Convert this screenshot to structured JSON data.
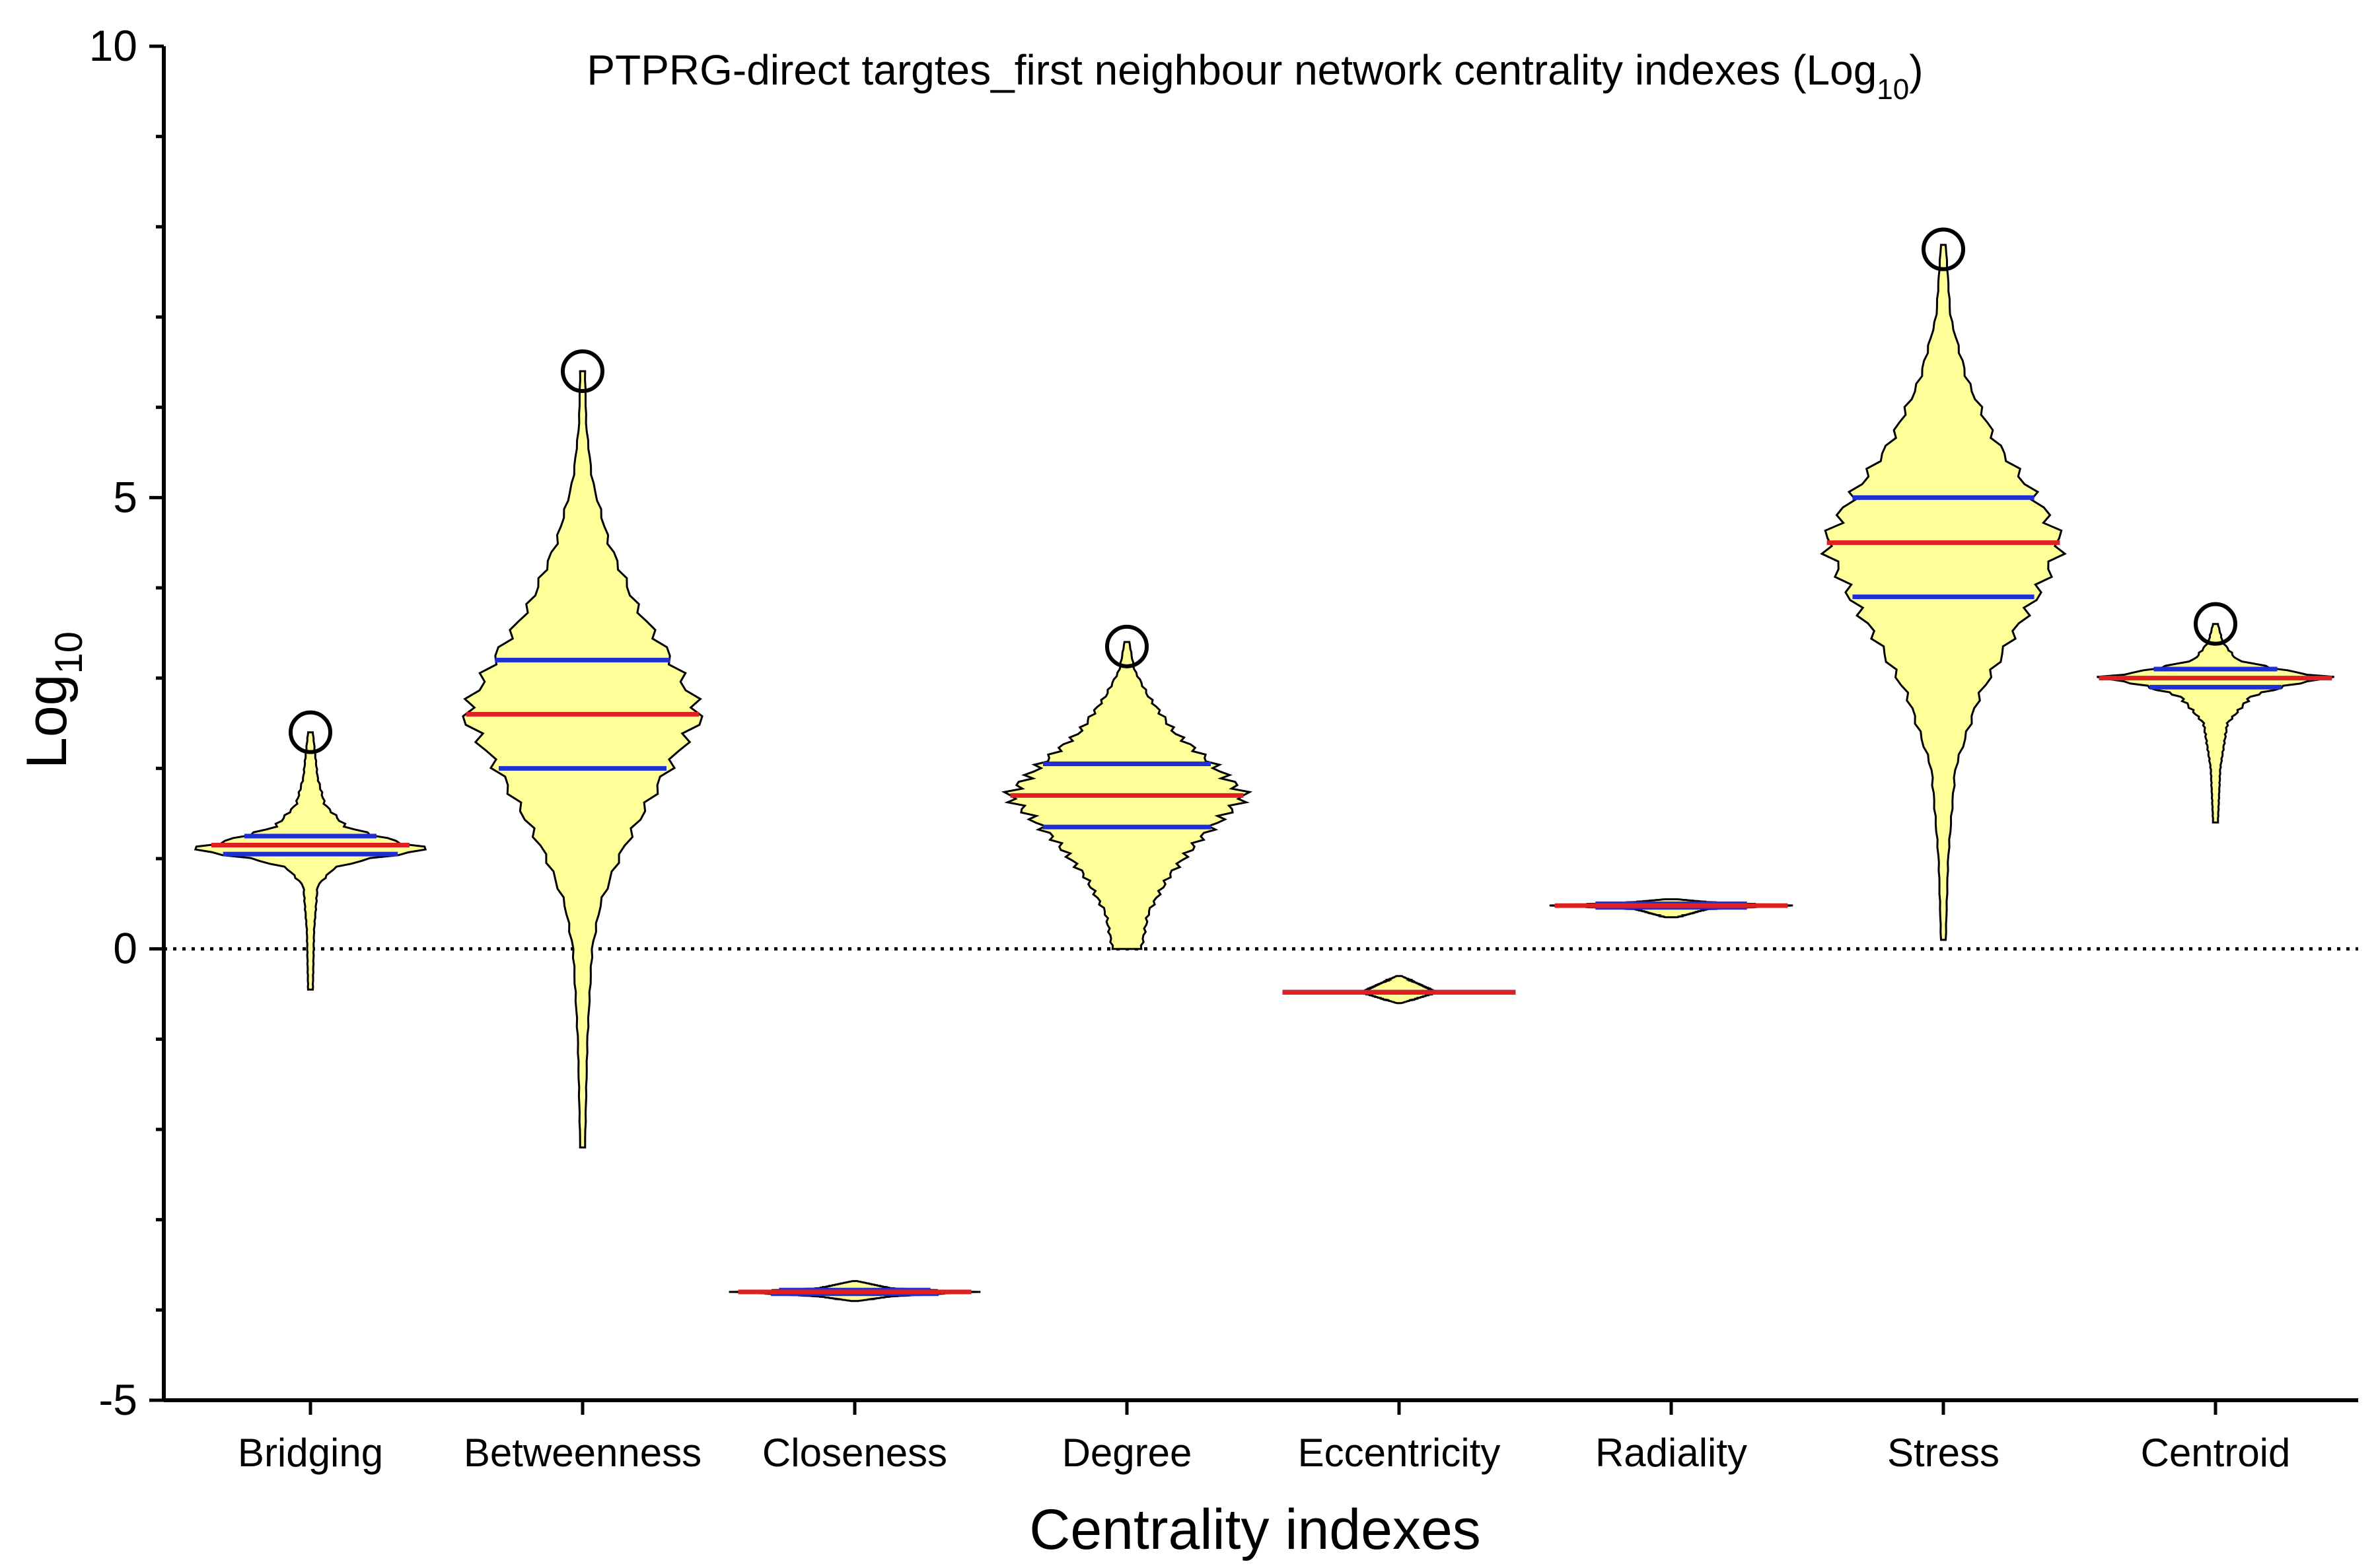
{
  "chart_data": {
    "type": "violin",
    "title": "PTPRG-direct targtes_first neighbour network centrality indexes (Log",
    "title_sub": "10",
    "title_close": ")",
    "xlabel": "Centrality indexes",
    "ylabel": "Log",
    "ylabel_sub": "10",
    "ylim": [
      -5,
      10
    ],
    "yticks": [
      -5,
      0,
      5,
      10
    ],
    "ytick_labels": [
      "-5",
      "0",
      "5",
      "10"
    ],
    "reference_line": {
      "y": 0,
      "style": "dotted"
    },
    "colors": {
      "fill": "#ffff99",
      "median": "#e02020",
      "quartile": "#1f2fd6",
      "outline": "#000000"
    },
    "categories": [
      "Bridging",
      "Betweenness",
      "Closeness",
      "Degree",
      "Eccentricity",
      "Radiality",
      "Stress",
      "Centroid"
    ],
    "series": [
      {
        "category": "Bridging",
        "min": -0.45,
        "q1": 1.05,
        "median": 1.15,
        "q3": 1.25,
        "max": 2.4,
        "outlier": 2.4,
        "profile": [
          [
            -0.45,
            0.02
          ],
          [
            0.2,
            0.03
          ],
          [
            0.7,
            0.06
          ],
          [
            0.9,
            0.2
          ],
          [
            1.0,
            0.5
          ],
          [
            1.1,
            1.0
          ],
          [
            1.2,
            0.7
          ],
          [
            1.35,
            0.3
          ],
          [
            1.6,
            0.12
          ],
          [
            1.9,
            0.06
          ],
          [
            2.4,
            0.02
          ]
        ]
      },
      {
        "category": "Betweenness",
        "min": -2.2,
        "q1": 2.0,
        "median": 2.6,
        "q3": 3.2,
        "max": 6.4,
        "outlier": 6.4,
        "profile": [
          [
            -2.2,
            0.02
          ],
          [
            -1.0,
            0.04
          ],
          [
            0.0,
            0.08
          ],
          [
            0.5,
            0.15
          ],
          [
            1.0,
            0.3
          ],
          [
            1.5,
            0.5
          ],
          [
            2.0,
            0.72
          ],
          [
            2.6,
            1.0
          ],
          [
            3.2,
            0.75
          ],
          [
            3.8,
            0.45
          ],
          [
            4.5,
            0.22
          ],
          [
            5.2,
            0.08
          ],
          [
            5.8,
            0.03
          ],
          [
            6.4,
            0.02
          ]
        ]
      },
      {
        "category": "Closeness",
        "min": -3.9,
        "q1": -3.82,
        "median": -3.8,
        "q3": -3.78,
        "max": -3.68,
        "outlier": null,
        "profile": [
          [
            -3.9,
            0.03
          ],
          [
            -3.85,
            0.3
          ],
          [
            -3.8,
            1.0
          ],
          [
            -3.76,
            0.3
          ],
          [
            -3.68,
            0.02
          ]
        ]
      },
      {
        "category": "Degree",
        "min": 0.0,
        "q1": 1.35,
        "median": 1.7,
        "q3": 2.05,
        "max": 3.4,
        "outlier": 3.35,
        "profile": [
          [
            0.0,
            0.12
          ],
          [
            0.4,
            0.18
          ],
          [
            0.8,
            0.35
          ],
          [
            1.2,
            0.6
          ],
          [
            1.7,
            1.0
          ],
          [
            2.05,
            0.72
          ],
          [
            2.4,
            0.4
          ],
          [
            2.8,
            0.18
          ],
          [
            3.1,
            0.06
          ],
          [
            3.4,
            0.02
          ]
        ]
      },
      {
        "category": "Eccentricity",
        "min": -0.6,
        "q1": -0.48,
        "median": -0.48,
        "q3": -0.48,
        "max": -0.3,
        "outlier": null,
        "profile": [
          [
            -0.6,
            0.02
          ],
          [
            -0.49,
            0.3
          ],
          [
            -0.48,
            1.0
          ],
          [
            -0.47,
            0.3
          ],
          [
            -0.3,
            0.02
          ]
        ]
      },
      {
        "category": "Radiality",
        "min": 0.35,
        "q1": 0.46,
        "median": 0.48,
        "q3": 0.5,
        "max": 0.55,
        "outlier": null,
        "profile": [
          [
            0.35,
            0.05
          ],
          [
            0.44,
            0.3
          ],
          [
            0.48,
            1.0
          ],
          [
            0.52,
            0.3
          ],
          [
            0.55,
            0.05
          ]
        ]
      },
      {
        "category": "Stress",
        "min": 0.1,
        "q1": 3.9,
        "median": 4.5,
        "q3": 5.0,
        "max": 7.8,
        "outlier": 7.75,
        "profile": [
          [
            0.1,
            0.02
          ],
          [
            1.0,
            0.04
          ],
          [
            2.0,
            0.1
          ],
          [
            2.8,
            0.3
          ],
          [
            3.4,
            0.55
          ],
          [
            3.9,
            0.78
          ],
          [
            4.5,
            1.0
          ],
          [
            5.0,
            0.78
          ],
          [
            5.6,
            0.45
          ],
          [
            6.3,
            0.2
          ],
          [
            7.0,
            0.06
          ],
          [
            7.8,
            0.02
          ]
        ]
      },
      {
        "category": "Centroid",
        "min": 1.4,
        "q1": 2.9,
        "median": 3.0,
        "q3": 3.1,
        "max": 3.6,
        "outlier": 3.6,
        "profile": [
          [
            1.4,
            0.02
          ],
          [
            2.0,
            0.04
          ],
          [
            2.5,
            0.1
          ],
          [
            2.8,
            0.3
          ],
          [
            2.95,
            0.7
          ],
          [
            3.0,
            1.0
          ],
          [
            3.08,
            0.6
          ],
          [
            3.2,
            0.18
          ],
          [
            3.4,
            0.06
          ],
          [
            3.6,
            0.02
          ]
        ]
      }
    ]
  }
}
